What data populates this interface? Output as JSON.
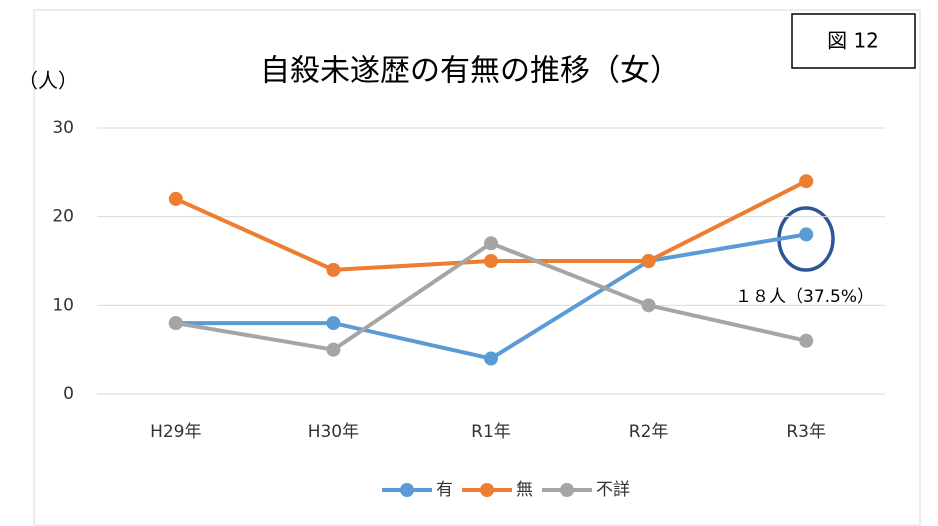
{
  "chart_data": {
    "type": "line",
    "title": "自殺未遂歴の有無の推移（女）",
    "y_label": "（人）",
    "figure_label": "図 12",
    "annotation": "１８人（37.5%）",
    "categories": [
      "H29年",
      "H30年",
      "R1年",
      "R2年",
      "R3年"
    ],
    "series": [
      {
        "name": "有",
        "color": "#5b9bd5",
        "values": [
          8,
          8,
          4,
          15,
          18
        ]
      },
      {
        "name": "無",
        "color": "#ed7d31",
        "values": [
          22,
          14,
          15,
          15,
          24
        ]
      },
      {
        "name": "不詳",
        "color": "#a5a5a5",
        "values": [
          8,
          5,
          17,
          10,
          6
        ]
      }
    ],
    "ylim": [
      0,
      30
    ],
    "yticks": [
      0,
      10,
      20,
      30
    ],
    "grid": true,
    "legend": "bottom"
  }
}
